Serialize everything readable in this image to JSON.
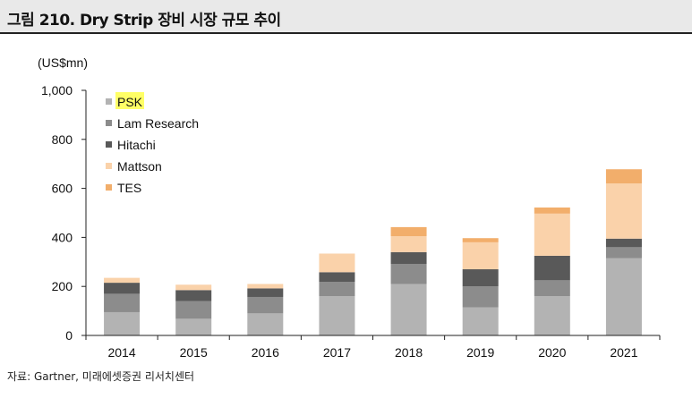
{
  "header": {
    "title": "그림 210. Dry Strip 장비 시장 규모 추이"
  },
  "footer": {
    "source": "자료: Gartner, 미래에셋증권 리서치센터"
  },
  "chart_data": {
    "type": "bar",
    "stacked": true,
    "unit_label": "(US$mn)",
    "categories": [
      "2014",
      "2015",
      "2016",
      "2017",
      "2018",
      "2019",
      "2020",
      "2021"
    ],
    "ylim": [
      0,
      1000
    ],
    "yticks": [
      "0",
      "200",
      "400",
      "600",
      "800",
      "1,000"
    ],
    "ytick_values": [
      0,
      200,
      400,
      600,
      800,
      1000
    ],
    "grid": false,
    "legend_position": "top-left",
    "series": [
      {
        "name": "PSK",
        "color": "#b3b3b3",
        "values": [
          95,
          68,
          90,
          160,
          210,
          115,
          160,
          315
        ]
      },
      {
        "name": "Lam Research",
        "color": "#8c8c8c",
        "values": [
          75,
          72,
          67,
          58,
          82,
          85,
          65,
          45
        ]
      },
      {
        "name": "Hitachi",
        "color": "#595959",
        "values": [
          45,
          45,
          35,
          40,
          48,
          70,
          100,
          35
        ]
      },
      {
        "name": "Mattson",
        "color": "#fad2aa",
        "values": [
          20,
          22,
          18,
          76,
          65,
          110,
          172,
          225
        ]
      },
      {
        "name": "TES",
        "color": "#f2ae6b",
        "values": [
          0,
          0,
          0,
          0,
          37,
          17,
          25,
          58
        ]
      }
    ]
  }
}
